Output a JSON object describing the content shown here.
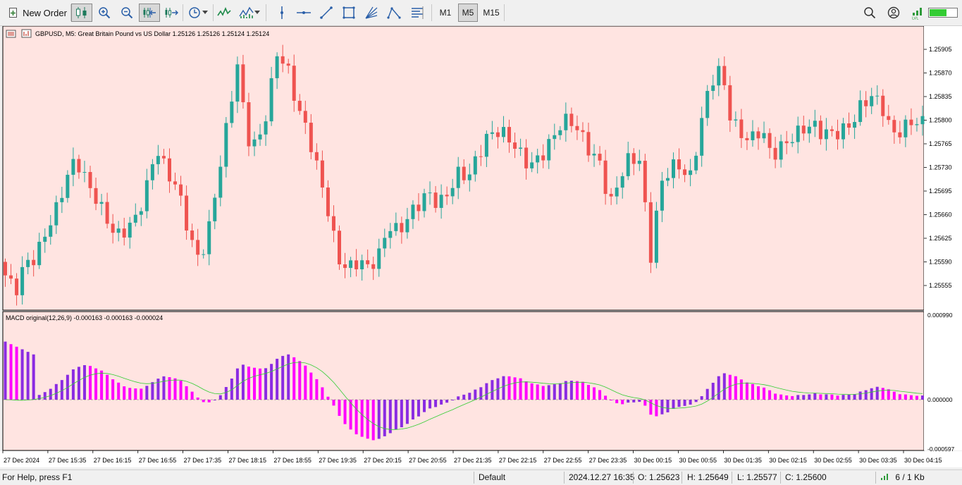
{
  "toolbar": {
    "new_order_label": "New Order",
    "timeframes": [
      "M1",
      "M5",
      "M15"
    ],
    "active_timeframe": "M5"
  },
  "chart": {
    "header": "GBPUSD, M5:  Great Britain Pound vs US Dollar  1.25126 1.25126 1.25124 1.25124",
    "price_axis_labels": [
      "1.25905",
      "1.25870",
      "1.25835",
      "1.25800",
      "1.25765",
      "1.25730",
      "1.25695",
      "1.25660",
      "1.25625",
      "1.25590",
      "1.25555"
    ],
    "time_axis_labels": [
      "27 Dec 2024",
      "27 Dec 15:35",
      "27 Dec 16:15",
      "27 Dec 16:55",
      "27 Dec 17:35",
      "27 Dec 18:15",
      "27 Dec 18:55",
      "27 Dec 19:35",
      "27 Dec 20:15",
      "27 Dec 20:55",
      "27 Dec 21:35",
      "27 Dec 22:15",
      "27 Dec 22:55",
      "27 Dec 23:35",
      "30 Dec 00:15",
      "30 Dec 00:55",
      "30 Dec 01:35",
      "30 Dec 02:15",
      "30 Dec 02:55",
      "30 Dec 03:35",
      "30 Dec 04:15"
    ],
    "background_color": "#ffe4e1",
    "bull_color": "#26a69a",
    "bear_color": "#ef5350"
  },
  "macd": {
    "header": "MACD original(12,26,9) -0.000163 -0.000163 -0.000024",
    "axis_labels": [
      "0.000990",
      "0.000000",
      "-0.000597"
    ],
    "hist_color_a": "#ff00ff",
    "hist_color_b": "#8a2be2",
    "signal_color": "#32cd32"
  },
  "status": {
    "help": "For Help, press F1",
    "profile": "Default",
    "datetime": "2024.12.27 16:35",
    "open": "O: 1.25623",
    "high": "H: 1.25649",
    "low": "L: 1.25577",
    "close": "C: 1.25600",
    "traffic": "6 / 1 Kb"
  },
  "chart_data": {
    "type": "candlestick",
    "symbol": "GBPUSD",
    "timeframe": "M5",
    "close_path": [
      1.2557,
      1.2554,
      1.25585,
      1.256,
      1.2564,
      1.25665,
      1.25705,
      1.2574,
      1.25715,
      1.2569,
      1.25655,
      1.2562,
      1.25635,
      1.2566,
      1.25705,
      1.2576,
      1.25715,
      1.257,
      1.2565,
      1.256,
      1.2562,
      1.257,
      1.2579,
      1.2589,
      1.2578,
      1.2576,
      1.2581,
      1.259,
      1.2588,
      1.25825,
      1.2578,
      1.2572,
      1.25665,
      1.256,
      1.25585,
      1.2559,
      1.25575,
      1.25595,
      1.2565,
      1.2564,
      1.25655,
      1.2567,
      1.2569,
      1.2568,
      1.257,
      1.2572,
      1.2571,
      1.2575,
      1.25785,
      1.2579,
      1.2577,
      1.25745,
      1.2573,
      1.2575,
      1.2577,
      1.2579,
      1.25795,
      1.2578,
      1.2576,
      1.2574,
      1.2567,
      1.2571,
      1.25745,
      1.25745,
      1.256,
      1.257,
      1.25725,
      1.2573,
      1.2572,
      1.258,
      1.25855,
      1.2587,
      1.258,
      1.25785,
      1.25775,
      1.25785,
      1.2574,
      1.2576,
      1.2578,
      1.2579,
      1.2579,
      1.25775,
      1.2578,
      1.2579,
      1.258,
      1.2582,
      1.2583,
      1.2582,
      1.25785,
      1.2579,
      1.25795,
      1.2579
    ],
    "macd_range": [
      -0.000597,
      0.00099
    ]
  }
}
